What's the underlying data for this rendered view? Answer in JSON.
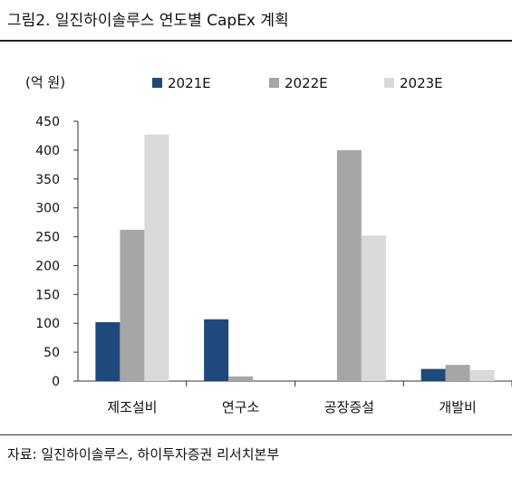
{
  "title": "그림2. 일진하이솔루스 연도별 CapEx 계획",
  "source": "자료: 일진하이솔루스, 하이투자증권 리서치본부",
  "chart_data": {
    "type": "bar",
    "unit": "(억 원)",
    "categories": [
      "제조설비",
      "연구소",
      "공장증설",
      "개발비"
    ],
    "series": [
      {
        "name": "2021E",
        "color": "#1f497d",
        "values": [
          102,
          107,
          0,
          21
        ]
      },
      {
        "name": "2022E",
        "color": "#a6a6a6",
        "values": [
          262,
          8,
          400,
          28
        ]
      },
      {
        "name": "2023E",
        "color": "#d9d9d9",
        "values": [
          427,
          0,
          252,
          19
        ]
      }
    ],
    "yticks": [
      0,
      50,
      100,
      150,
      200,
      250,
      300,
      350,
      400,
      450
    ],
    "ylim": [
      0,
      450
    ],
    "grid": false,
    "legend_position": "top"
  }
}
